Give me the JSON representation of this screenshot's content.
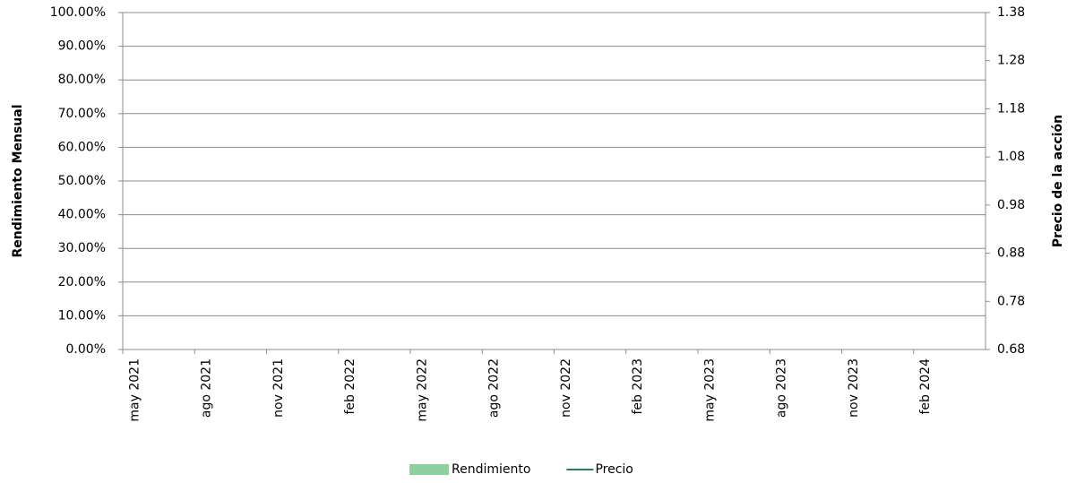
{
  "chart_data": {
    "type": "bar",
    "categories": [
      "may 2021",
      null,
      null,
      "ago 2021",
      null,
      null,
      "nov 2021",
      null,
      null,
      "feb 2022",
      null,
      null,
      "may 2022",
      null,
      null,
      "ago 2022",
      null,
      null,
      "nov 2022",
      null,
      null,
      "feb 2023",
      null,
      null,
      "may 2023",
      null,
      null,
      "ago 2023",
      null,
      null,
      "nov 2023",
      null,
      null,
      "feb 2024",
      null,
      null
    ],
    "series": [
      {
        "name": "Rendimiento",
        "color": "#8fd19e",
        "type": "bar",
        "axis": "y",
        "values": [
          null,
          null,
          null,
          null,
          null,
          null,
          null,
          null,
          null,
          null,
          null,
          null,
          null,
          null,
          null,
          null,
          null,
          null,
          null,
          null,
          null,
          null,
          null,
          null,
          null,
          null,
          null,
          null,
          null,
          null,
          null,
          null,
          null,
          null,
          null,
          null
        ]
      },
      {
        "name": "Precio",
        "color": "#2e7d5b",
        "type": "line",
        "axis": "y2",
        "values": [
          null,
          null,
          null,
          null,
          null,
          null,
          null,
          null,
          null,
          null,
          null,
          null,
          null,
          null,
          null,
          null,
          null,
          null,
          null,
          null,
          null,
          null,
          null,
          null,
          null,
          null,
          null,
          null,
          null,
          null,
          null,
          null,
          null,
          null,
          null,
          null
        ]
      }
    ],
    "y_label": "Rendimiento Mensual",
    "y2_label": "Precio de la acción",
    "ylim": [
      0,
      100
    ],
    "yticks": [
      {
        "value": 0,
        "label": "0.00%"
      },
      {
        "value": 10,
        "label": "10.00%"
      },
      {
        "value": 20,
        "label": "20.00%"
      },
      {
        "value": 30,
        "label": "30.00%"
      },
      {
        "value": 40,
        "label": "40.00%"
      },
      {
        "value": 50,
        "label": "50.00%"
      },
      {
        "value": 60,
        "label": "60.00%"
      },
      {
        "value": 70,
        "label": "70.00%"
      },
      {
        "value": 80,
        "label": "80.00%"
      },
      {
        "value": 90,
        "label": "90.00%"
      },
      {
        "value": 100,
        "label": "100.00%"
      }
    ],
    "y2lim": [
      0.68,
      1.38
    ],
    "y2ticks": [
      0.68,
      0.78,
      0.88,
      0.98,
      1.08,
      1.18,
      1.28,
      1.38
    ],
    "grid": true,
    "legend": "bottom"
  }
}
